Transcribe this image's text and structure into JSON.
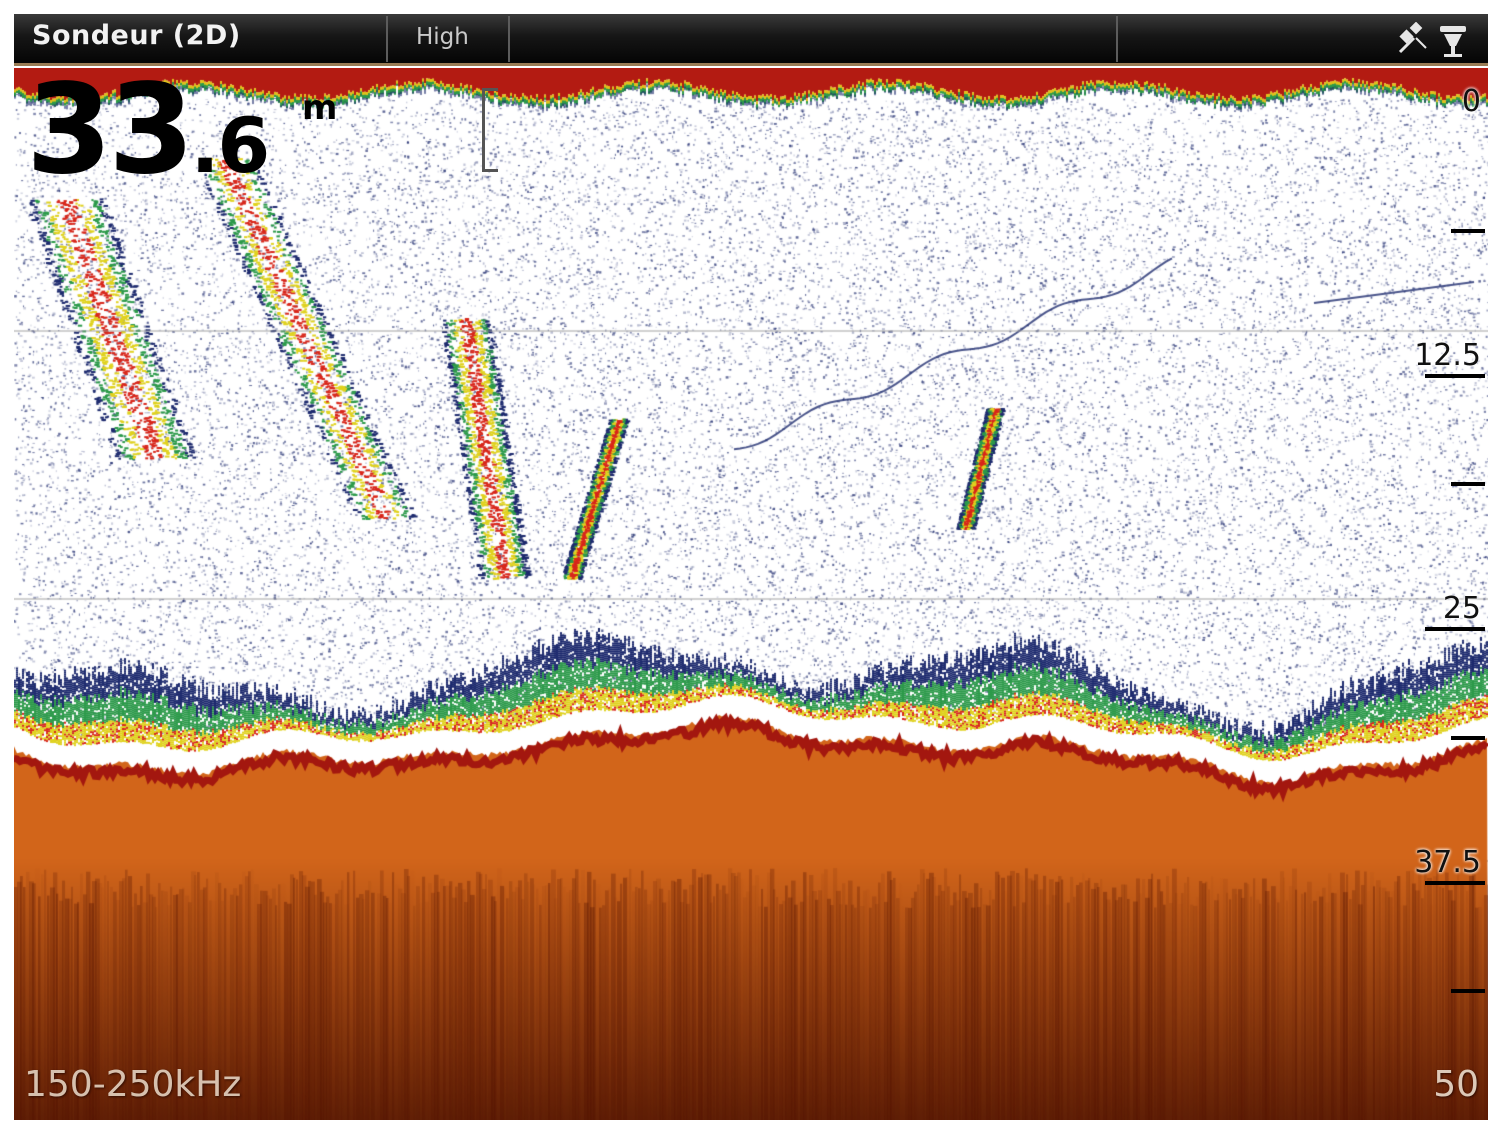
{
  "header": {
    "title": "Sondeur (2D)",
    "mode": "High",
    "icons": [
      "satellite-icon",
      "transducer-icon"
    ]
  },
  "readouts": {
    "depth_integer": "33",
    "depth_decimal": ".6",
    "depth_unit": "m",
    "frequency": "150-250kHz",
    "range_max": "50"
  },
  "depth_scale": {
    "labels": [
      "0",
      "12.5",
      "25",
      "37.5"
    ],
    "label_values_m": [
      0,
      12.5,
      25,
      37.5
    ],
    "minor_tick_values_m": [
      6.25,
      18.75,
      31.25,
      43.75
    ],
    "max_m": 50
  },
  "colors": {
    "surface_band": "#b31b12",
    "bottom": "#d2651a",
    "bottom_edge": "#a3170f",
    "fish_arch_core": "#d8261a",
    "fish_arch_mid": "#e0d21e",
    "fish_arch_outer": "#2c9a4a",
    "noise": "#1d2a6e",
    "background": "#ffffff"
  }
}
